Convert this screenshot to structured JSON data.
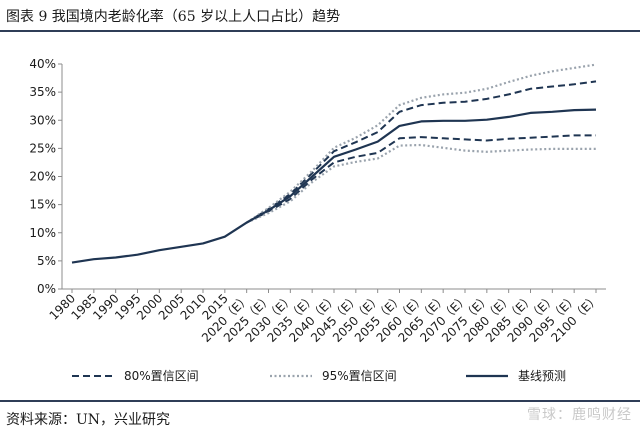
{
  "header": {
    "title": "图表 9   我国境内老龄化率（65 岁以上人口占比）趋势"
  },
  "footer": {
    "source": "资料来源：UN，兴业研究",
    "watermark": "雪球：鹿鸣财经"
  },
  "colors": {
    "line": "#1f3552",
    "dotted": "#9aa3ad",
    "rule": "#2f3d57"
  },
  "chart_data": {
    "type": "line",
    "title": "我国境内老龄化率（65 岁以上人口占比）趋势",
    "xlabel": "",
    "ylabel": "",
    "ylim": [
      0,
      40
    ],
    "yticks": [
      "0%",
      "5%",
      "10%",
      "15%",
      "20%",
      "25%",
      "30%",
      "35%",
      "40%"
    ],
    "categories": [
      "1980",
      "1985",
      "1990",
      "1995",
      "2000",
      "2005",
      "2010",
      "2015",
      "2020（E）",
      "2025（E）",
      "2030（E）",
      "2035（E）",
      "2040（E）",
      "2045（E）",
      "2050（E）",
      "2055（E）",
      "2060（E）",
      "2065（E）",
      "2070（E）",
      "2075（E）",
      "2080（E）",
      "2085（E）",
      "2090（E）",
      "2095（E）",
      "2100（E）"
    ],
    "series": [
      {
        "name": "基线预测",
        "style": "solid",
        "values": [
          4.7,
          5.3,
          5.6,
          6.1,
          6.9,
          7.5,
          8.1,
          9.3,
          11.8,
          14.0,
          16.5,
          20.0,
          23.5,
          24.8,
          26.2,
          29.0,
          29.8,
          29.9,
          29.9,
          30.1,
          30.6,
          31.3,
          31.5,
          31.8,
          31.9
        ]
      },
      {
        "name": "80%置信区间",
        "style": "dashed",
        "values_upper": [
          null,
          null,
          null,
          null,
          null,
          null,
          null,
          null,
          11.8,
          14.2,
          16.9,
          20.6,
          24.5,
          26.1,
          27.9,
          31.5,
          32.7,
          33.1,
          33.3,
          33.8,
          34.6,
          35.6,
          36.0,
          36.4,
          36.9
        ],
        "values_lower": [
          null,
          null,
          null,
          null,
          null,
          null,
          null,
          null,
          11.8,
          13.8,
          16.0,
          19.5,
          22.5,
          23.5,
          24.2,
          26.8,
          27.0,
          26.8,
          26.6,
          26.4,
          26.7,
          26.9,
          27.1,
          27.3,
          27.3
        ]
      },
      {
        "name": "95%置信区间",
        "style": "dotted",
        "values_upper": [
          null,
          null,
          null,
          null,
          null,
          null,
          null,
          null,
          11.8,
          14.4,
          17.3,
          21.0,
          25.1,
          26.9,
          29.1,
          32.7,
          34.0,
          34.6,
          34.9,
          35.6,
          36.8,
          37.9,
          38.7,
          39.3,
          39.9
        ],
        "values_lower": [
          null,
          null,
          null,
          null,
          null,
          null,
          null,
          null,
          11.8,
          13.5,
          15.6,
          19.0,
          21.8,
          22.6,
          23.2,
          25.5,
          25.6,
          25.1,
          24.6,
          24.4,
          24.6,
          24.8,
          24.9,
          24.9,
          24.9
        ]
      }
    ],
    "legend": [
      "80%置信区间",
      "95%置信区间",
      "基线预测"
    ],
    "legend_position": "bottom",
    "grid": false
  }
}
